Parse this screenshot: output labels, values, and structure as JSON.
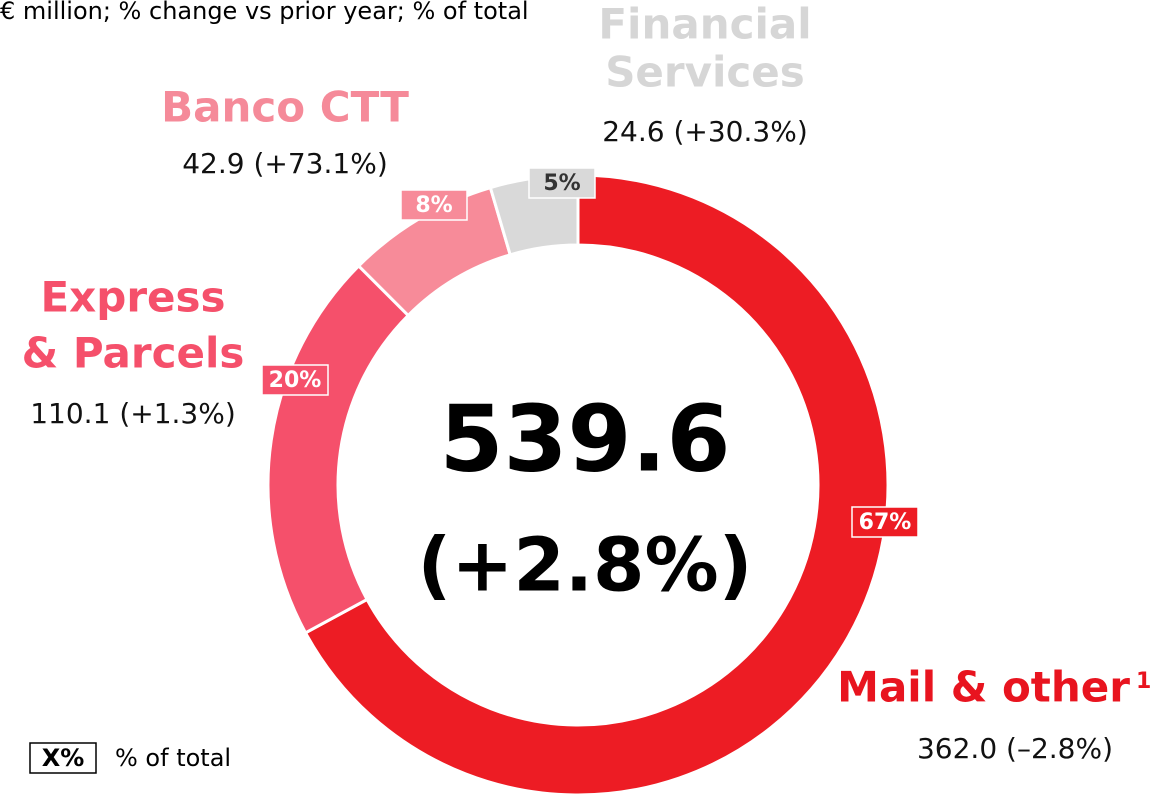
{
  "chart_data": {
    "type": "donut",
    "subtitle": "€ million; % change vs prior year; % of total",
    "categories": [
      [
        "Mail & other"
      ],
      [
        "Express",
        "& Parcels"
      ],
      [
        "Banco CTT"
      ],
      [
        "Financial",
        "Services"
      ]
    ],
    "category_notes": [
      "1",
      null,
      null,
      null
    ],
    "values": [
      362.0,
      110.1,
      42.9,
      24.6
    ],
    "value_labels": [
      "362.0",
      "110.1",
      "42.9",
      "24.6"
    ],
    "change_labels": [
      "(–2.8%)",
      "(+1.3%)",
      "(+73.1%)",
      "(+30.3%)"
    ],
    "shares": [
      67,
      20,
      8,
      5
    ],
    "share_labels": [
      "67%",
      "20%",
      "8%",
      "5%"
    ],
    "colors": [
      "#ed1c24",
      "#f5506b",
      "#f78b99",
      "#d9d9d9"
    ],
    "label_colors": [
      "#e8141f",
      "#f5506b",
      "#f58a99",
      "#d6d6d6"
    ],
    "total": 539.6,
    "total_change_label": "(+2.8%)",
    "legend": {
      "key": "X%",
      "label": "% of total"
    }
  }
}
